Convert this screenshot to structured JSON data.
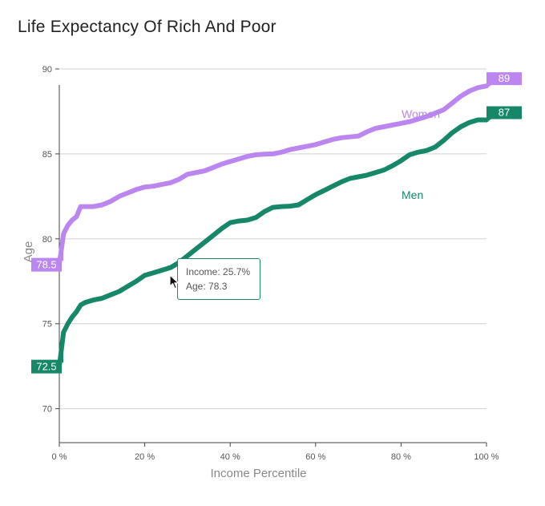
{
  "title": "Life Expectancy Of Rich And Poor",
  "tooltip": {
    "income_text": "Income: 25.7%",
    "age_text": "Age: 78.3"
  },
  "colors": {
    "women": "#bb86f0",
    "men": "#17876a",
    "grid": "#d0d0d0",
    "axis": "#444444",
    "tooltip_border": "#1a8a6a"
  },
  "chart_data": {
    "type": "line",
    "title": "Life Expectancy Of Rich And Poor",
    "xlabel": "Income Percentile",
    "ylabel": "Age",
    "xlim": [
      0,
      100
    ],
    "ylim": [
      68,
      90
    ],
    "x_ticks": [
      0,
      20,
      40,
      60,
      80,
      100
    ],
    "x_tick_labels": [
      "0 %",
      "20 %",
      "40 %",
      "60 %",
      "80 %",
      "100 %"
    ],
    "y_ticks": [
      70,
      75,
      80,
      85,
      90
    ],
    "y_tick_labels": [
      "70",
      "75",
      "80",
      "85",
      "90"
    ],
    "grid": "horizontal",
    "series": [
      {
        "name": "Women",
        "start_label": "78.5",
        "end_label": "89",
        "x": [
          0,
          1,
          2,
          3,
          4,
          5,
          6,
          8,
          10,
          12,
          14,
          16,
          18,
          20,
          22,
          24,
          26,
          28,
          30,
          32,
          34,
          36,
          38,
          40,
          42,
          44,
          46,
          48,
          50,
          52,
          54,
          56,
          58,
          60,
          62,
          64,
          66,
          68,
          70,
          72,
          74,
          76,
          78,
          80,
          82,
          84,
          86,
          88,
          90,
          92,
          94,
          96,
          98,
          100
        ],
        "values": [
          78.5,
          80.3,
          80.8,
          81.1,
          81.3,
          81.9,
          81.9,
          81.9,
          82.0,
          82.2,
          82.5,
          82.7,
          82.9,
          83.05,
          83.1,
          83.2,
          83.3,
          83.5,
          83.8,
          83.9,
          84.0,
          84.2,
          84.4,
          84.55,
          84.7,
          84.85,
          84.95,
          84.98,
          85.0,
          85.1,
          85.25,
          85.35,
          85.45,
          85.55,
          85.7,
          85.85,
          85.95,
          86.0,
          86.05,
          86.3,
          86.5,
          86.6,
          86.7,
          86.8,
          86.9,
          87.05,
          87.2,
          87.4,
          87.6,
          88.0,
          88.4,
          88.7,
          88.9,
          89.0
        ]
      },
      {
        "name": "Men",
        "start_label": "72.5",
        "end_label": "87",
        "x": [
          0,
          1,
          2,
          3,
          4,
          5,
          6,
          8,
          10,
          12,
          14,
          16,
          18,
          20,
          22,
          24,
          26,
          28,
          30,
          32,
          34,
          36,
          38,
          40,
          42,
          44,
          46,
          48,
          50,
          52,
          54,
          56,
          58,
          60,
          62,
          64,
          66,
          68,
          70,
          72,
          74,
          76,
          78,
          80,
          82,
          84,
          86,
          88,
          90,
          92,
          94,
          96,
          98,
          100
        ],
        "values": [
          72.5,
          74.5,
          75.0,
          75.4,
          75.7,
          76.1,
          76.25,
          76.4,
          76.5,
          76.7,
          76.9,
          77.2,
          77.5,
          77.85,
          78.0,
          78.15,
          78.3,
          78.6,
          79.0,
          79.4,
          79.8,
          80.2,
          80.6,
          80.95,
          81.05,
          81.1,
          81.25,
          81.6,
          81.85,
          81.9,
          81.92,
          82.0,
          82.3,
          82.6,
          82.85,
          83.1,
          83.35,
          83.55,
          83.65,
          83.75,
          83.9,
          84.05,
          84.3,
          84.6,
          84.95,
          85.1,
          85.2,
          85.4,
          85.8,
          86.25,
          86.6,
          86.85,
          87.0,
          87.0
        ]
      }
    ]
  }
}
